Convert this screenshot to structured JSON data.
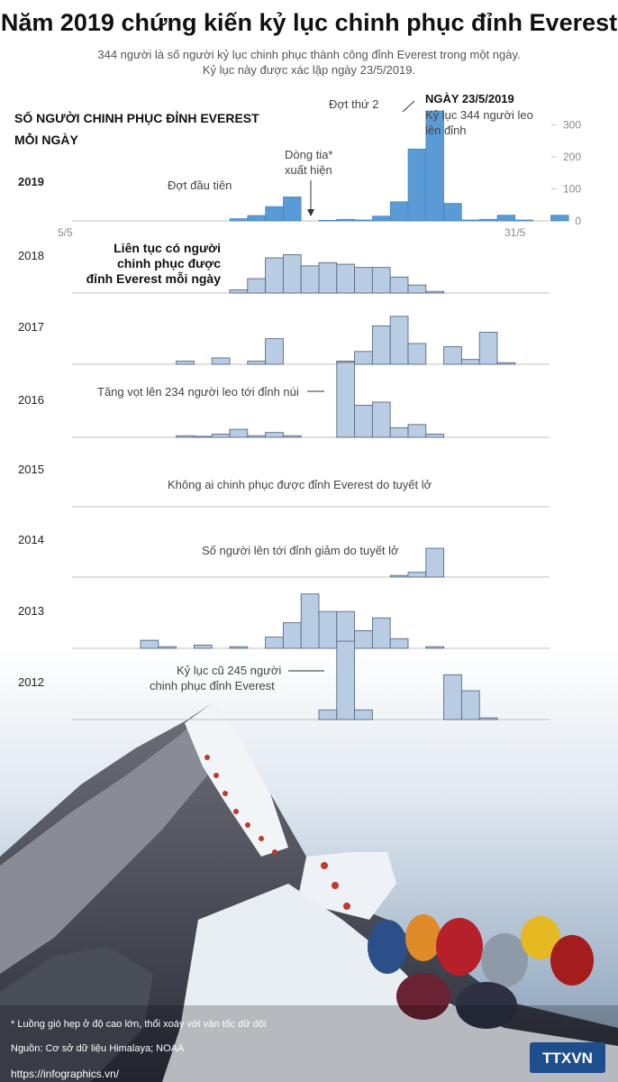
{
  "header": {
    "title": "Năm 2019 chứng kiến kỷ lục chinh phục đỉnh Everest",
    "subtitle_line1": "344 người là số người kỷ lục chinh phục thành công đỉnh Everest trong một ngày.",
    "subtitle_line2": "Kỷ lục này được xác lập ngày 23/5/2019."
  },
  "chart_title_line1": "SỐ NGƯỜI CHINH PHỤC ĐỈNH EVEREST",
  "chart_title_line2": "MỖI NGÀY",
  "colors": {
    "dark": "#5b9bd5",
    "light": "#b8cce4",
    "outline": "#5a6b82",
    "axis": "#bfbfbf"
  },
  "chart_data": {
    "type": "bar",
    "x_unit": "day of May",
    "x_start_label": "5/5",
    "x_end_label": "31/5",
    "ylim": [
      0,
      344
    ],
    "y_ticks": [
      "0",
      "100",
      "200",
      "300"
    ],
    "years": [
      {
        "year": "2019",
        "values": [
          [
            14,
            7
          ],
          [
            15,
            17
          ],
          [
            16,
            45
          ],
          [
            17,
            75
          ],
          [
            19,
            2
          ],
          [
            20,
            5
          ],
          [
            21,
            3
          ],
          [
            22,
            15
          ],
          [
            23,
            60
          ],
          [
            24,
            225
          ],
          [
            25,
            344
          ],
          [
            26,
            55
          ],
          [
            27,
            3
          ],
          [
            28,
            5
          ],
          [
            29,
            18
          ],
          [
            30,
            3
          ],
          [
            32,
            18
          ]
        ]
      },
      {
        "year": "2018",
        "values": [
          [
            14,
            10
          ],
          [
            15,
            45
          ],
          [
            16,
            110
          ],
          [
            17,
            120
          ],
          [
            18,
            85
          ],
          [
            19,
            95
          ],
          [
            20,
            90
          ],
          [
            21,
            80
          ],
          [
            22,
            80
          ],
          [
            23,
            50
          ],
          [
            24,
            25
          ],
          [
            25,
            5
          ]
        ]
      },
      {
        "year": "2017",
        "values": [
          [
            11,
            10
          ],
          [
            13,
            20
          ],
          [
            15,
            10
          ],
          [
            16,
            80
          ],
          [
            20,
            10
          ],
          [
            21,
            40
          ],
          [
            22,
            120
          ],
          [
            23,
            150
          ],
          [
            24,
            65
          ],
          [
            26,
            55
          ],
          [
            27,
            15
          ],
          [
            28,
            100
          ],
          [
            29,
            5
          ]
        ]
      },
      {
        "year": "2016",
        "values": [
          [
            11,
            5
          ],
          [
            12,
            3
          ],
          [
            13,
            10
          ],
          [
            14,
            25
          ],
          [
            15,
            5
          ],
          [
            16,
            15
          ],
          [
            17,
            5
          ],
          [
            20,
            234
          ],
          [
            21,
            100
          ],
          [
            22,
            110
          ],
          [
            23,
            30
          ],
          [
            24,
            40
          ],
          [
            25,
            10
          ]
        ]
      },
      {
        "year": "2015",
        "values": []
      },
      {
        "year": "2014",
        "values": [
          [
            23,
            5
          ],
          [
            24,
            15
          ],
          [
            25,
            90
          ]
        ]
      },
      {
        "year": "2013",
        "values": [
          [
            9,
            25
          ],
          [
            10,
            5
          ],
          [
            12,
            10
          ],
          [
            14,
            5
          ],
          [
            16,
            35
          ],
          [
            17,
            80
          ],
          [
            18,
            170
          ],
          [
            19,
            115
          ],
          [
            20,
            115
          ],
          [
            21,
            55
          ],
          [
            22,
            95
          ],
          [
            23,
            30
          ],
          [
            25,
            5
          ]
        ]
      },
      {
        "year": "2012",
        "values": [
          [
            19,
            30
          ],
          [
            20,
            245
          ],
          [
            21,
            30
          ],
          [
            26,
            140
          ],
          [
            27,
            90
          ],
          [
            28,
            5
          ]
        ]
      }
    ],
    "annotations": [
      {
        "year": "2019",
        "text": "Đợt đầu tiên"
      },
      {
        "year": "2019",
        "text_line1": "Dòng tia*",
        "text_line2": "xuất hiện"
      },
      {
        "year": "2019",
        "text": "Đợt thứ 2"
      },
      {
        "year": "2019",
        "heading": "NGÀY 23/5/2019",
        "text_line1": "Kỷ lục 344 người leo",
        "text_line2": "lên đỉnh"
      },
      {
        "year": "2018",
        "line1": "Liên tục có người",
        "line2": "chinh phục được",
        "line3": "đỉnh Everest mỗi ngày"
      },
      {
        "year": "2016",
        "text": "Tăng vọt lên 234 người leo tới đỉnh núi"
      },
      {
        "year": "2015",
        "text": "Không ai chinh phục được đỉnh Everest do tuyết lở"
      },
      {
        "year": "2014",
        "text": "Số người lên tới đỉnh giảm do tuyết lở"
      },
      {
        "year": "2012",
        "text_line1": "Kỷ lục cũ 245 người",
        "text_line2": "chinh phục đỉnh Everest"
      }
    ]
  },
  "footer": {
    "note": "* Luồng gió hẹp ở độ cao lớn, thổi xoáy với vận tốc dữ dội",
    "source": "Nguồn: Cơ sở dữ liệu Himalaya; NOAA",
    "url": "https://infographics.vn/",
    "logo": "TTXVN"
  }
}
